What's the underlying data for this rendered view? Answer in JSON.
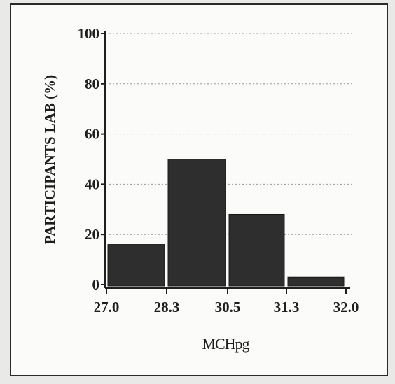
{
  "chart_data": {
    "type": "bar",
    "title": "",
    "xlabel": "MCHpg",
    "ylabel": "PARTICIPANTS LAB (%)",
    "x_ticks": [
      "27.0",
      "28.3",
      "30.5",
      "31.3",
      "32.0"
    ],
    "y_ticks": [
      "0",
      "20",
      "40",
      "60",
      "80",
      "100"
    ],
    "ylim": [
      0,
      100
    ],
    "grid": true,
    "bars": [
      {
        "from": "27.0",
        "to": "28.3",
        "value": 16
      },
      {
        "from": "28.3",
        "to": "30.5",
        "value": 50
      },
      {
        "from": "30.5",
        "to": "31.3",
        "value": 28
      },
      {
        "from": "31.3",
        "to": "32.0",
        "value": 3
      }
    ],
    "bar_color": "#2e2e2e",
    "grid_color": "#9a9a9a"
  }
}
